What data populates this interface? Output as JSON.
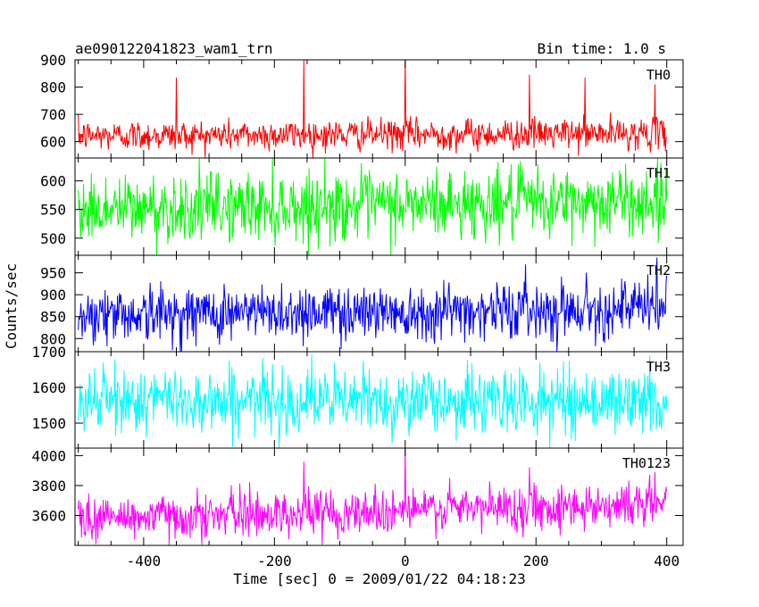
{
  "header": {
    "title": "ae090122041823_wam1_trn",
    "bin_time": "Bin time: 1.0 s"
  },
  "chart_data": {
    "type": "line",
    "ylabel": "Counts/sec",
    "xlabel": "Time [sec] 0 = 2009/01/22 04:18:23",
    "xlim": [
      -505,
      425
    ],
    "xticks": [
      -400,
      -200,
      0,
      200,
      400
    ],
    "x_start": -500,
    "x_end": 400,
    "bin": 1.0,
    "panels": [
      {
        "name": "TH0",
        "color": "#ff0000",
        "ylim": [
          540,
          900
        ],
        "yticks": [
          600,
          700,
          800,
          900
        ],
        "mean_start": 622,
        "mean_end": 630,
        "noise": 28,
        "spikes": [
          {
            "x": -350,
            "y": 835
          },
          {
            "x": -155,
            "y": 900
          },
          {
            "x": 0,
            "y": 900
          },
          {
            "x": 190,
            "y": 845
          },
          {
            "x": 275,
            "y": 835
          },
          {
            "x": 382,
            "y": 810
          }
        ]
      },
      {
        "name": "TH1",
        "color": "#00ff00",
        "ylim": [
          470,
          640
        ],
        "yticks": [
          500,
          550,
          600
        ],
        "mean_start": 550,
        "mean_end": 565,
        "noise": 30,
        "spikes": []
      },
      {
        "name": "TH2",
        "color": "#0000ff",
        "ylim": [
          770,
          990
        ],
        "yticks": [
          800,
          850,
          900,
          950
        ],
        "mean_start": 855,
        "mean_end": 870,
        "noise": 32,
        "spikes": [
          {
            "x": 385,
            "y": 985
          }
        ]
      },
      {
        "name": "TH3",
        "color": "#00ffff",
        "ylim": [
          1430,
          1700
        ],
        "yticks": [
          1500,
          1600,
          1700
        ],
        "mean_start": 1565,
        "mean_end": 1560,
        "noise": 45,
        "spikes": []
      },
      {
        "name": "TH0123",
        "color": "#ff00ff",
        "ylim": [
          3400,
          4050
        ],
        "yticks": [
          3600,
          3800,
          4000
        ],
        "mean_start": 3580,
        "mean_end": 3680,
        "noise": 75,
        "spikes": [
          {
            "x": -155,
            "y": 3960
          },
          {
            "x": 0,
            "y": 4050
          },
          {
            "x": 190,
            "y": 3920
          },
          {
            "x": 382,
            "y": 3890
          }
        ]
      }
    ]
  }
}
